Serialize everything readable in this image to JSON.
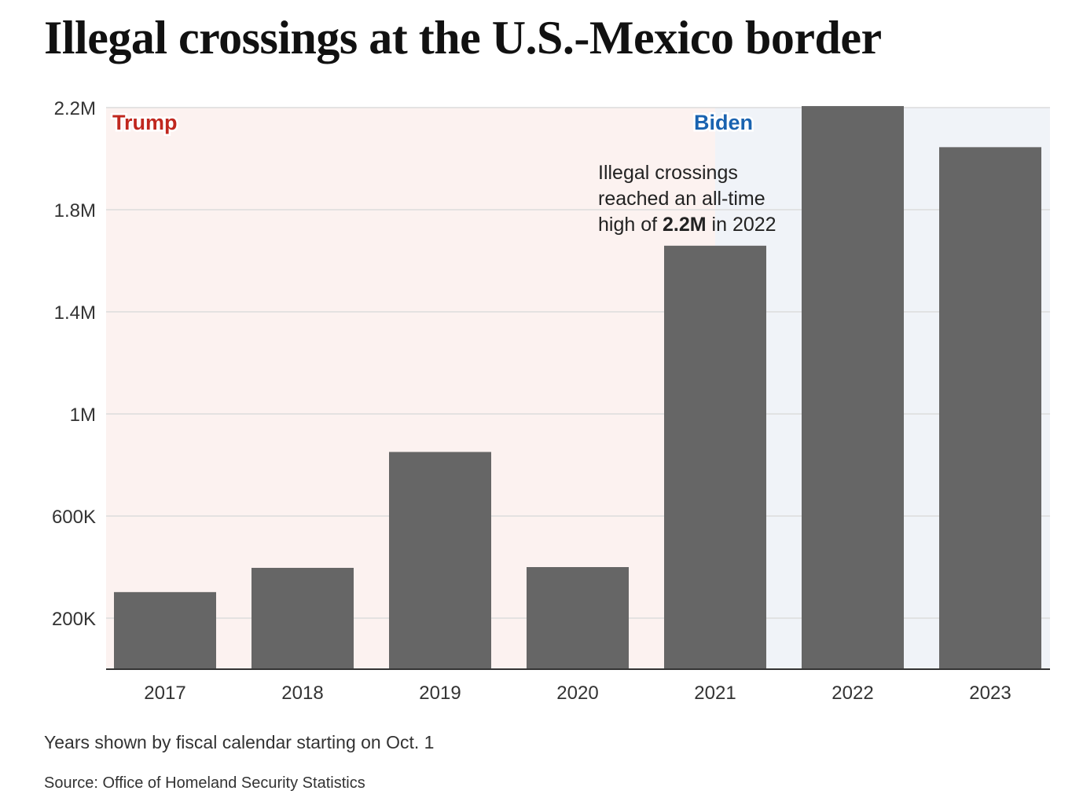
{
  "title": "Illegal crossings at the U.S.-Mexico border",
  "chart_data": {
    "type": "bar",
    "title": "Illegal crossings at the U.S.-Mexico border",
    "xlabel": "",
    "ylabel": "",
    "categories": [
      "2017",
      "2018",
      "2019",
      "2020",
      "2021",
      "2022",
      "2023"
    ],
    "values": [
      302000,
      397000,
      851000,
      400000,
      1659000,
      2206000,
      2045000
    ],
    "ylim": [
      0,
      2200000
    ],
    "yticks": [
      200000,
      600000,
      1000000,
      1400000,
      1800000,
      2200000
    ],
    "ytick_labels": [
      "200K",
      "600K",
      "1M",
      "1.4M",
      "1.8M",
      "2.2M"
    ],
    "grid": true,
    "bar_color": "#666666",
    "regions": [
      {
        "label": "Trump",
        "from": 2016.5,
        "to": 2021.0,
        "color": "#fcf2f0",
        "label_color": "#c0271e"
      },
      {
        "label": "Biden",
        "from": 2021.0,
        "to": 2023.5,
        "color": "#f0f3f8",
        "label_color": "#1a63b0"
      }
    ],
    "annotation": {
      "lines": [
        "Illegal crossings",
        "reached an all-time"
      ],
      "last_prefix": "high of ",
      "last_bold": "2.2M",
      "last_suffix": " in 2022"
    }
  },
  "footnote": "Years shown by fiscal calendar starting on Oct. 1",
  "source": "Source: Office of Homeland Security Statistics"
}
